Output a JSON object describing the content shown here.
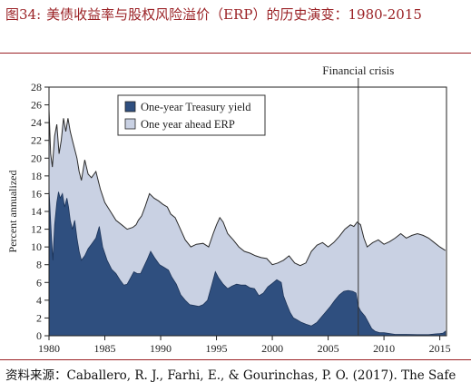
{
  "header": {
    "figure_no": "图34:",
    "title": "美债收益率与股权风险溢价（ERP）的历史演变：1980-2015"
  },
  "source_line": "资料来源：Caballero, R. J., Farhi, E., & Gourinchas, P. O. (2017). The Safe",
  "colors": {
    "title_red": "#9b2226",
    "treasury_fill": "#2f4f7f",
    "erp_fill": "#c9d1e3",
    "outline": "#2a2a2a"
  },
  "chart_data": {
    "type": "area",
    "ylabel": "Percent annualized",
    "xlim": [
      1980,
      2015.6
    ],
    "ylim": [
      0,
      28
    ],
    "x_ticks": [
      1980,
      1985,
      1990,
      1995,
      2000,
      2005,
      2010,
      2015
    ],
    "y_ticks": [
      0,
      2,
      4,
      6,
      8,
      10,
      12,
      14,
      16,
      18,
      20,
      22,
      24,
      26,
      28
    ],
    "legend": {
      "placement": "top-left"
    },
    "annotation": {
      "label": "Financial crisis",
      "x": 2007.7
    },
    "series": [
      {
        "name": "One-year Treasury yield",
        "x": [
          1980.0,
          1980.2,
          1980.35,
          1980.5,
          1980.7,
          1980.85,
          1981.0,
          1981.2,
          1981.4,
          1981.6,
          1981.75,
          1981.9,
          1982.1,
          1982.3,
          1982.5,
          1982.7,
          1982.9,
          1983.2,
          1983.5,
          1983.8,
          1984.2,
          1984.5,
          1984.8,
          1985.2,
          1985.6,
          1986.0,
          1986.4,
          1986.7,
          1987.0,
          1987.3,
          1987.6,
          1987.9,
          1988.2,
          1988.5,
          1988.8,
          1989.1,
          1989.5,
          1989.9,
          1990.3,
          1990.7,
          1991.0,
          1991.4,
          1991.8,
          1992.2,
          1992.6,
          1993.0,
          1993.4,
          1993.8,
          1994.2,
          1994.6,
          1994.9,
          1995.2,
          1995.6,
          1996.0,
          1996.4,
          1996.8,
          1997.2,
          1997.6,
          1998.0,
          1998.4,
          1998.8,
          1999.2,
          1999.6,
          2000.0,
          2000.4,
          2000.8,
          2001.0,
          2001.3,
          2001.6,
          2001.9,
          2002.2,
          2002.6,
          2003.0,
          2003.5,
          2004.0,
          2004.4,
          2004.8,
          2005.2,
          2005.6,
          2006.0,
          2006.4,
          2006.8,
          2007.2,
          2007.5,
          2007.7,
          2007.9,
          2008.1,
          2008.3,
          2008.6,
          2008.9,
          2009.2,
          2009.6,
          2010.0,
          2011.0,
          2012.0,
          2013.0,
          2014.0,
          2014.6,
          2015.0,
          2015.3,
          2015.5
        ],
        "values": [
          16.5,
          11.5,
          8.5,
          12.5,
          15.0,
          16.2,
          15.5,
          16.0,
          14.5,
          15.5,
          14.5,
          13.0,
          12.0,
          13.0,
          11.0,
          9.5,
          8.5,
          9.0,
          9.8,
          10.3,
          11.0,
          12.3,
          10.0,
          8.5,
          7.5,
          7.0,
          6.2,
          5.7,
          5.8,
          6.5,
          7.2,
          7.0,
          7.0,
          7.8,
          8.6,
          9.5,
          8.7,
          8.0,
          7.7,
          7.4,
          6.6,
          5.8,
          4.6,
          4.0,
          3.5,
          3.4,
          3.3,
          3.5,
          4.0,
          5.8,
          7.2,
          6.5,
          5.8,
          5.3,
          5.6,
          5.8,
          5.7,
          5.7,
          5.4,
          5.3,
          4.5,
          4.8,
          5.5,
          5.9,
          6.3,
          6.0,
          4.5,
          3.5,
          2.6,
          2.0,
          1.8,
          1.5,
          1.3,
          1.1,
          1.5,
          2.1,
          2.7,
          3.3,
          4.0,
          4.6,
          5.0,
          5.1,
          5.0,
          4.8,
          3.3,
          2.8,
          2.5,
          2.2,
          1.5,
          0.8,
          0.5,
          0.35,
          0.35,
          0.15,
          0.15,
          0.12,
          0.12,
          0.2,
          0.25,
          0.3,
          0.5
        ]
      },
      {
        "name": "One year ahead ERP",
        "x": [
          1980.0,
          1980.15,
          1980.3,
          1980.5,
          1980.7,
          1980.9,
          1981.1,
          1981.3,
          1981.5,
          1981.7,
          1981.9,
          1982.1,
          1982.3,
          1982.5,
          1982.7,
          1982.9,
          1983.2,
          1983.5,
          1983.8,
          1984.2,
          1984.6,
          1985.0,
          1985.5,
          1986.0,
          1986.5,
          1987.0,
          1987.5,
          1987.8,
          1988.0,
          1988.3,
          1988.6,
          1989.0,
          1989.4,
          1989.8,
          1990.2,
          1990.6,
          1990.9,
          1991.3,
          1991.7,
          1992.2,
          1992.7,
          1993.2,
          1993.8,
          1994.3,
          1994.7,
          1995.0,
          1995.3,
          1995.6,
          1996.0,
          1996.5,
          1997.0,
          1997.5,
          1998.0,
          1998.5,
          1999.0,
          1999.5,
          2000.0,
          2000.5,
          2001.0,
          2001.5,
          2002.0,
          2002.5,
          2003.0,
          2003.5,
          2004.0,
          2004.5,
          2005.0,
          2005.5,
          2006.0,
          2006.5,
          2007.0,
          2007.3,
          2007.6,
          2007.9,
          2008.2,
          2008.5,
          2009.0,
          2009.5,
          2010.0,
          2010.5,
          2011.0,
          2011.5,
          2012.0,
          2012.5,
          2013.0,
          2013.5,
          2014.0,
          2014.5,
          2015.0,
          2015.5
        ],
        "values": [
          25.5,
          20.5,
          19.0,
          22.5,
          23.8,
          20.5,
          22.0,
          24.5,
          23.0,
          24.5,
          23.0,
          22.0,
          21.0,
          20.0,
          18.5,
          17.5,
          19.8,
          18.2,
          17.8,
          18.5,
          16.5,
          15.0,
          14.0,
          13.0,
          12.5,
          12.0,
          12.2,
          12.5,
          13.0,
          13.5,
          14.5,
          16.0,
          15.5,
          15.2,
          14.8,
          14.5,
          13.7,
          13.3,
          12.2,
          10.8,
          10.0,
          10.3,
          10.4,
          10.0,
          11.5,
          12.5,
          13.3,
          12.8,
          11.5,
          10.8,
          10.0,
          9.5,
          9.3,
          9.0,
          8.8,
          8.7,
          8.0,
          8.2,
          8.5,
          9.0,
          8.2,
          7.9,
          8.2,
          9.5,
          10.2,
          10.5,
          10.0,
          10.5,
          11.2,
          12.0,
          12.5,
          12.3,
          12.8,
          12.5,
          11.0,
          10.0,
          10.5,
          10.8,
          10.3,
          10.6,
          11.0,
          11.5,
          11.0,
          11.3,
          11.5,
          11.3,
          11.0,
          10.5,
          10.0,
          9.6
        ]
      }
    ]
  }
}
